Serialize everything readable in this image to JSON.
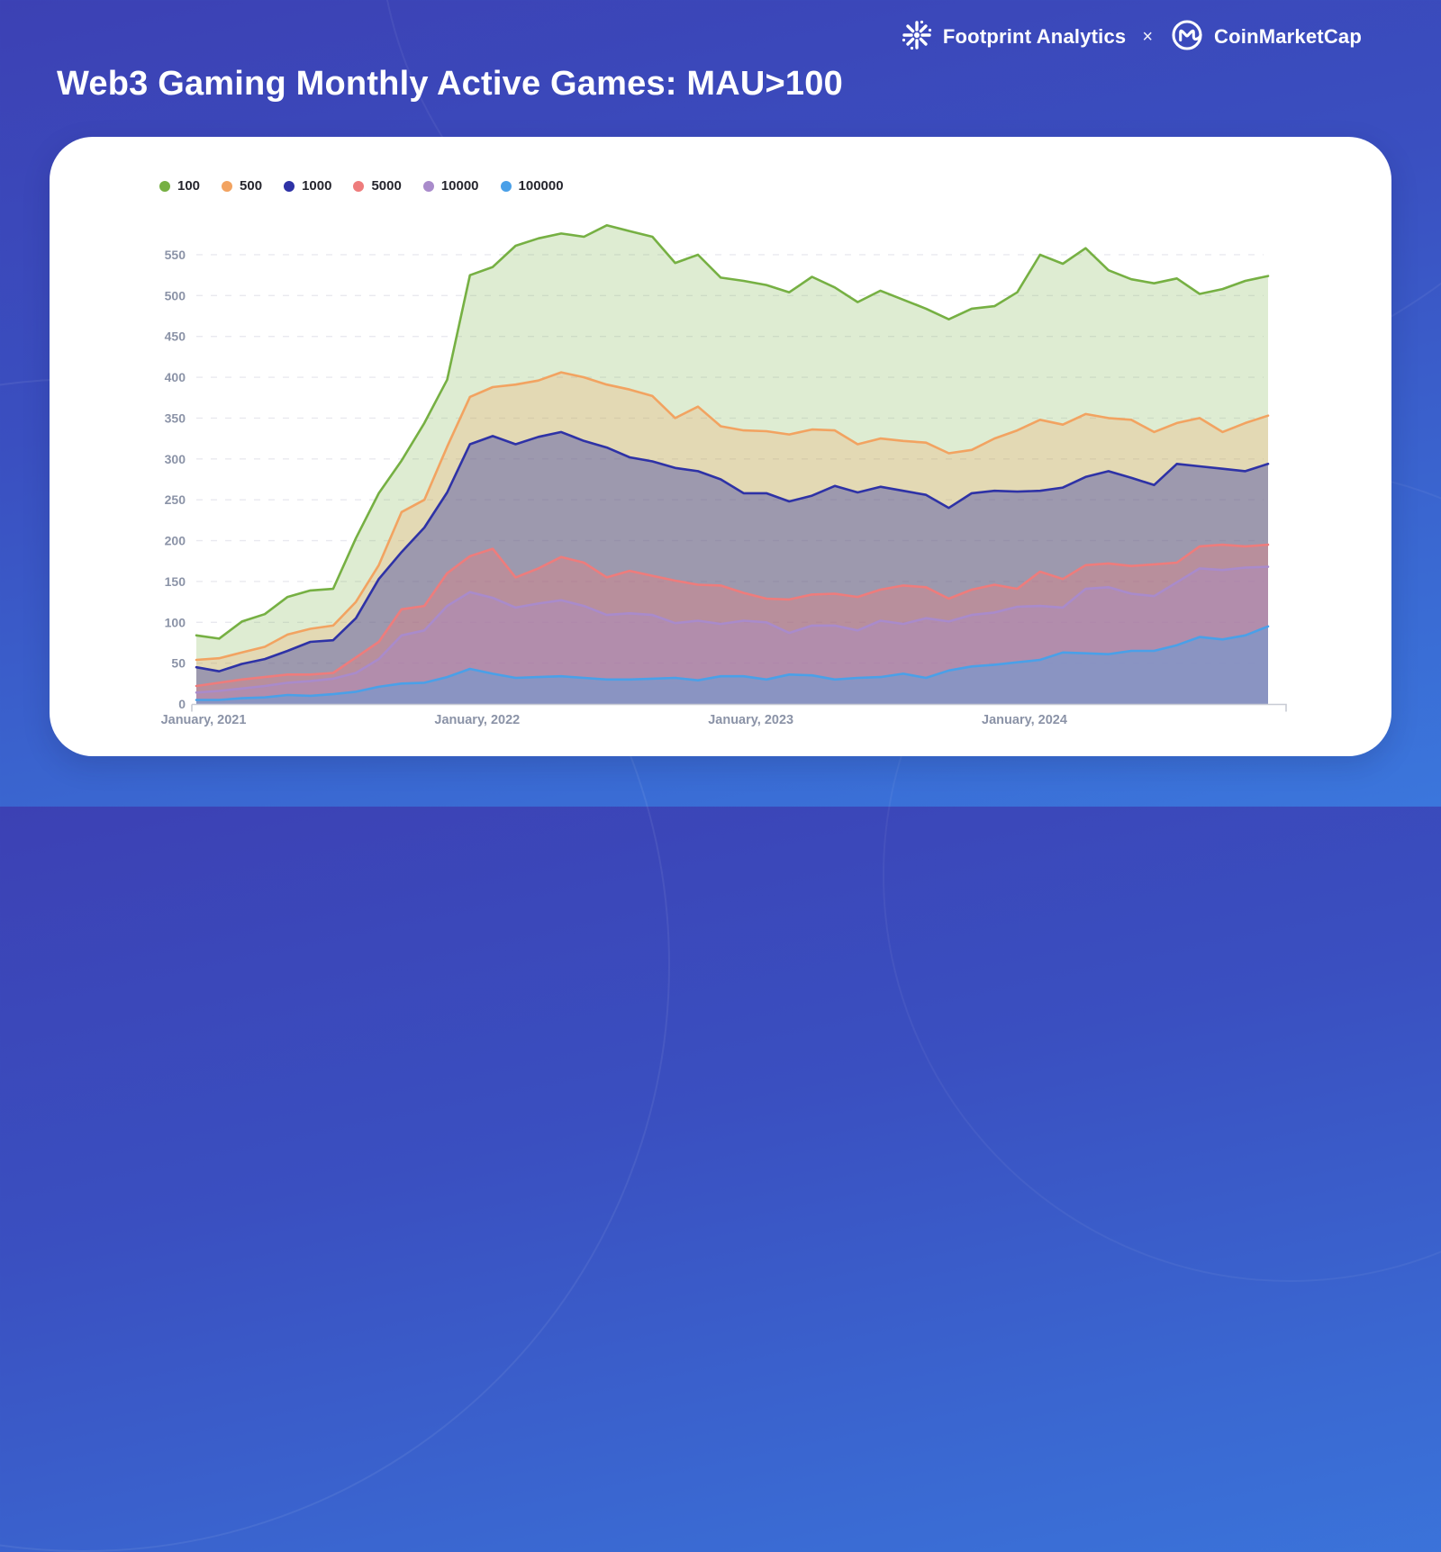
{
  "header": {
    "brand_left": "Footprint Analytics",
    "separator": "×",
    "brand_right": "CoinMarketCap"
  },
  "title": "Web3 Gaming Monthly Active Games: MAU>100",
  "colors": {
    "background_top": "#3c41b4",
    "background_bottom": "#3b76dc",
    "card": "#ffffff",
    "axis_label": "#8b93a7",
    "axis_line": "#c8cbd4",
    "gridline": "#e9e9ef",
    "legend_text": "#26262e",
    "title_text": "#ffffff"
  },
  "chart_data": {
    "type": "area",
    "title": "Web3 Gaming Monthly Active Games: MAU>100",
    "grid": "horizontal dashed",
    "legend_position": "top-left",
    "xlabel": "",
    "ylabel": "",
    "ylim": [
      0,
      595
    ],
    "y_ticks": [
      0,
      50,
      100,
      150,
      200,
      250,
      300,
      350,
      400,
      450,
      500,
      550
    ],
    "x": [
      "2021-01",
      "2021-02",
      "2021-03",
      "2021-04",
      "2021-05",
      "2021-06",
      "2021-07",
      "2021-08",
      "2021-09",
      "2021-10",
      "2021-11",
      "2021-12",
      "2022-01",
      "2022-02",
      "2022-03",
      "2022-04",
      "2022-05",
      "2022-06",
      "2022-07",
      "2022-08",
      "2022-09",
      "2022-10",
      "2022-11",
      "2022-12",
      "2023-01",
      "2023-02",
      "2023-03",
      "2023-04",
      "2023-05",
      "2023-06",
      "2023-07",
      "2023-08",
      "2023-09",
      "2023-10",
      "2023-11",
      "2023-12",
      "2024-01",
      "2024-02",
      "2024-03",
      "2024-04",
      "2024-05",
      "2024-06",
      "2024-07",
      "2024-08",
      "2024-09",
      "2024-10",
      "2024-11",
      "2024-12"
    ],
    "x_axis_labels": [
      {
        "text": "January, 2021",
        "month": 0
      },
      {
        "text": "January, 2022",
        "month": 12
      },
      {
        "text": "January, 2023",
        "month": 24
      },
      {
        "text": "January, 2024",
        "month": 36
      }
    ],
    "series": [
      {
        "name": "100",
        "color": "#76b043",
        "fill_alpha": 0.24,
        "values": [
          84,
          80,
          101,
          110,
          131,
          139,
          141,
          203,
          258,
          298,
          344,
          397,
          525,
          535,
          561,
          570,
          576,
          572,
          586,
          579,
          572,
          540,
          550,
          522,
          518,
          513,
          504,
          523,
          510,
          492,
          506,
          495,
          484,
          471,
          484,
          487,
          504,
          550,
          539,
          558,
          531,
          520,
          515,
          521,
          502,
          508,
          518,
          524
        ]
      },
      {
        "name": "500",
        "color": "#f2a361",
        "fill_alpha": 0.26,
        "values": [
          54,
          56,
          63,
          70,
          85,
          92,
          96,
          125,
          170,
          235,
          250,
          315,
          376,
          388,
          391,
          396,
          406,
          400,
          391,
          385,
          377,
          350,
          364,
          340,
          335,
          334,
          330,
          336,
          335,
          318,
          325,
          322,
          320,
          307,
          311,
          325,
          335,
          348,
          342,
          355,
          350,
          348,
          333,
          344,
          350,
          333,
          344,
          353
        ]
      },
      {
        "name": "1000",
        "color": "#2e32a6",
        "fill_alpha": 0.38,
        "values": [
          45,
          40,
          49,
          55,
          65,
          76,
          78,
          105,
          153,
          186,
          216,
          259,
          318,
          328,
          318,
          327,
          333,
          322,
          314,
          302,
          297,
          289,
          285,
          275,
          258,
          258,
          248,
          255,
          267,
          259,
          266,
          261,
          256,
          240,
          258,
          261,
          260,
          261,
          265,
          278,
          285,
          277,
          268,
          294,
          291,
          288,
          285,
          294
        ]
      },
      {
        "name": "5000",
        "color": "#ee7c7c",
        "fill_alpha": 0.34,
        "values": [
          22,
          26,
          30,
          33,
          36,
          36,
          38,
          57,
          76,
          116,
          120,
          160,
          181,
          190,
          155,
          166,
          180,
          173,
          155,
          163,
          157,
          151,
          146,
          145,
          136,
          129,
          128,
          134,
          135,
          131,
          140,
          145,
          143,
          129,
          140,
          146,
          141,
          162,
          153,
          170,
          172,
          169,
          171,
          173,
          193,
          195,
          193,
          195
        ]
      },
      {
        "name": "10000",
        "color": "#a98bcb",
        "fill_alpha": 0.36,
        "values": [
          14,
          16,
          19,
          22,
          26,
          28,
          31,
          38,
          55,
          84,
          90,
          120,
          137,
          130,
          118,
          123,
          127,
          120,
          109,
          111,
          109,
          99,
          102,
          98,
          102,
          100,
          87,
          96,
          96,
          90,
          102,
          98,
          105,
          101,
          109,
          112,
          119,
          120,
          118,
          141,
          143,
          135,
          132,
          149,
          166,
          164,
          167,
          168
        ]
      },
      {
        "name": "100000",
        "color": "#4aa0e8",
        "fill_alpha": 0.38,
        "values": [
          5,
          5,
          7,
          8,
          11,
          10,
          12,
          15,
          21,
          25,
          26,
          33,
          43,
          37,
          32,
          33,
          34,
          32,
          30,
          30,
          31,
          32,
          29,
          34,
          34,
          30,
          36,
          35,
          30,
          32,
          33,
          37,
          32,
          41,
          46,
          48,
          51,
          54,
          63,
          62,
          61,
          65,
          65,
          72,
          82,
          79,
          84,
          95
        ]
      }
    ]
  }
}
